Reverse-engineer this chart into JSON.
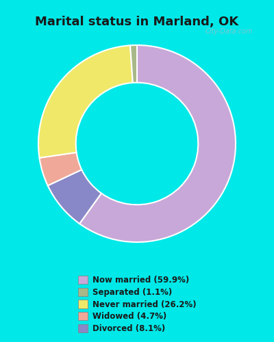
{
  "title": "Marital status in Marland, OK",
  "slices": [
    59.9,
    1.1,
    26.2,
    4.7,
    8.1
  ],
  "colors": [
    "#c8a8d8",
    "#a8b888",
    "#f0e868",
    "#f0a898",
    "#8888c8"
  ],
  "labels": [
    "Now married (59.9%)",
    "Separated (1.1%)",
    "Never married (26.2%)",
    "Widowed (4.7%)",
    "Divorced (8.1%)"
  ],
  "bg_outer": "#00e8e8",
  "bg_chart": "#e8f8e8",
  "watermark": "City-Data.com",
  "donut_width": 0.38,
  "start_angle": 90
}
